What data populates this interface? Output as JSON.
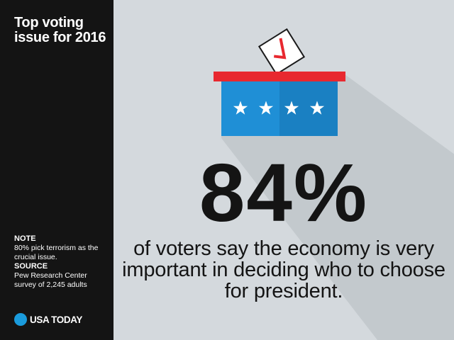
{
  "sidebar": {
    "title": "Top voting issue for 2016",
    "note_label": "NOTE",
    "note_text": "80% pick terrorism as the crucial issue.",
    "source_label": "SOURCE",
    "source_text": "Pew Research Center survey of 2,245 adults",
    "logo_text": "USA TODAY"
  },
  "main": {
    "stat": "84%",
    "caption": "of voters say the economy is very important in deciding who to choose for president."
  },
  "colors": {
    "sidebar_bg": "#141414",
    "main_bg": "#d4d9dd",
    "box_blue": "#1f8fd6",
    "lid_red": "#e8282f",
    "logo_blue": "#1a9bdc"
  },
  "icons": {
    "ballot_box": "ballot-box-icon",
    "check": "checkmark-icon",
    "star": "star-icon"
  }
}
